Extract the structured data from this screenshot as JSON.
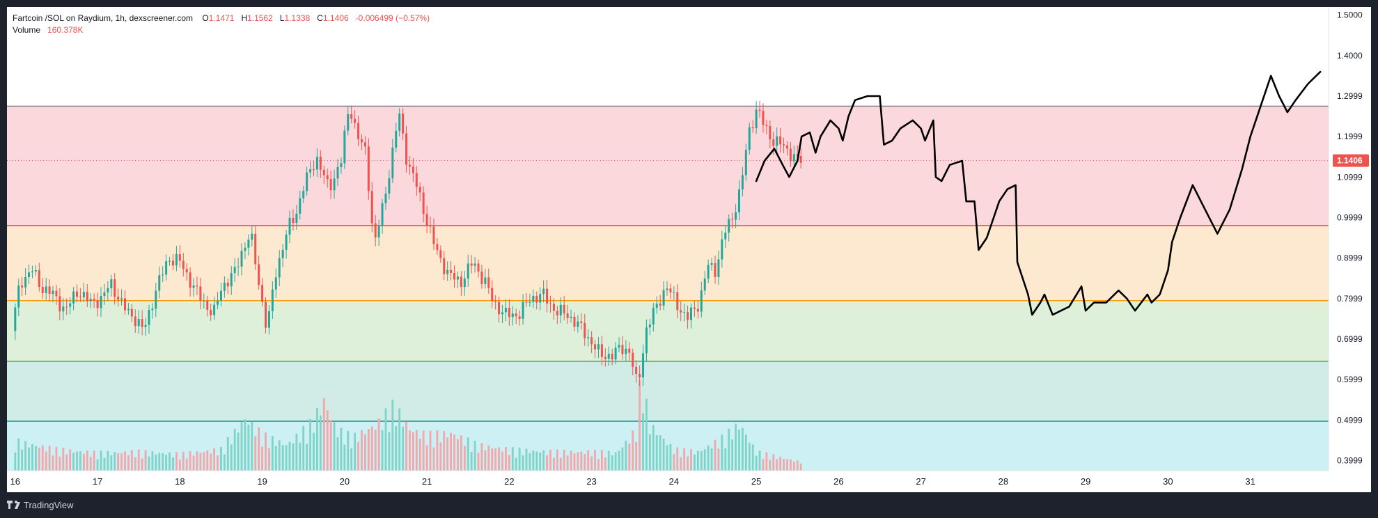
{
  "header": {
    "symbol": "Fartcoin /SOL on Raydium, 1h, dexscreener.com",
    "o_label": "O",
    "o_value": "1.1471",
    "h_label": "H",
    "h_value": "1.1562",
    "l_label": "L",
    "l_value": "1.1338",
    "c_label": "C",
    "c_value": "1.1406",
    "change": "-0.006499 (−0.57%)",
    "volume_label": "Volume",
    "volume_value": "160.378K"
  },
  "footer": {
    "brand": "TradingView"
  },
  "colors": {
    "up": "#26a69a",
    "down": "#ef5350",
    "up_volume": "#7fd3c8",
    "down_volume": "#f2a7ab",
    "zone_red": "#fad8dc",
    "zone_orange": "#fde9cf",
    "zone_green": "#def0da",
    "zone_teal": "#d1ece6",
    "zone_cyan": "#ccf0f3",
    "price_tag": "#ef5350"
  },
  "chart_data": {
    "type": "candlestick",
    "ylim": [
      0.375,
      1.52
    ],
    "y_ticks": [
      "1.5000",
      "1.4000",
      "1.2999",
      "1.1999",
      "1.0999",
      "0.9999",
      "0.8999",
      "0.7999",
      "0.6999",
      "0.5999",
      "0.4999",
      "0.3999"
    ],
    "x_ticks": [
      "16",
      "17",
      "18",
      "19",
      "20",
      "21",
      "22",
      "23",
      "24",
      "25",
      "26",
      "27",
      "28",
      "29",
      "30",
      "31"
    ],
    "last_price": "1.1406",
    "zones": [
      {
        "from": 0.98,
        "to": 1.275,
        "color": "zone_red"
      },
      {
        "from": 0.795,
        "to": 0.98,
        "color": "zone_orange"
      },
      {
        "from": 0.645,
        "to": 0.795,
        "color": "zone_green"
      },
      {
        "from": 0.497,
        "to": 0.645,
        "color": "zone_teal"
      },
      {
        "from": 0.375,
        "to": 0.497,
        "color": "zone_cyan"
      }
    ],
    "levels": [
      {
        "value": 1.275,
        "color": "#787b86"
      },
      {
        "value": 0.98,
        "color": "#f23645"
      },
      {
        "value": 0.795,
        "color": "#ff9800"
      },
      {
        "value": 0.645,
        "color": "#4caf50"
      },
      {
        "value": 0.497,
        "color": "#089981"
      }
    ],
    "price_path": [
      [
        16.0,
        0.72
      ],
      [
        16.1,
        0.84
      ],
      [
        16.25,
        0.87
      ],
      [
        16.35,
        0.83
      ],
      [
        16.5,
        0.81
      ],
      [
        16.65,
        0.77
      ],
      [
        16.8,
        0.82
      ],
      [
        16.95,
        0.79
      ],
      [
        17.1,
        0.8
      ],
      [
        17.2,
        0.84
      ],
      [
        17.35,
        0.78
      ],
      [
        17.5,
        0.75
      ],
      [
        17.6,
        0.72
      ],
      [
        17.75,
        0.82
      ],
      [
        17.9,
        0.9
      ],
      [
        18.05,
        0.89
      ],
      [
        18.2,
        0.83
      ],
      [
        18.3,
        0.8
      ],
      [
        18.45,
        0.76
      ],
      [
        18.55,
        0.83
      ],
      [
        18.7,
        0.86
      ],
      [
        18.8,
        0.92
      ],
      [
        18.9,
        0.96
      ],
      [
        19.0,
        0.84
      ],
      [
        19.1,
        0.72
      ],
      [
        19.2,
        0.86
      ],
      [
        19.35,
        0.97
      ],
      [
        19.45,
        1.01
      ],
      [
        19.55,
        1.08
      ],
      [
        19.7,
        1.15
      ],
      [
        19.85,
        1.07
      ],
      [
        20.0,
        1.14
      ],
      [
        20.1,
        1.28
      ],
      [
        20.2,
        1.2
      ],
      [
        20.3,
        1.16
      ],
      [
        20.4,
        0.93
      ],
      [
        20.5,
        1.02
      ],
      [
        20.6,
        1.13
      ],
      [
        20.7,
        1.26
      ],
      [
        20.8,
        1.14
      ],
      [
        20.9,
        1.09
      ],
      [
        21.0,
        1.02
      ],
      [
        21.15,
        0.92
      ],
      [
        21.3,
        0.86
      ],
      [
        21.45,
        0.84
      ],
      [
        21.6,
        0.89
      ],
      [
        21.75,
        0.84
      ],
      [
        21.85,
        0.79
      ],
      [
        22.0,
        0.76
      ],
      [
        22.15,
        0.76
      ],
      [
        22.3,
        0.8
      ],
      [
        22.45,
        0.81
      ],
      [
        22.6,
        0.77
      ],
      [
        22.75,
        0.76
      ],
      [
        22.9,
        0.73
      ],
      [
        23.05,
        0.69
      ],
      [
        23.15,
        0.66
      ],
      [
        23.3,
        0.66
      ],
      [
        23.4,
        0.68
      ],
      [
        23.5,
        0.67
      ],
      [
        23.6,
        0.58
      ],
      [
        23.7,
        0.72
      ],
      [
        23.85,
        0.79
      ],
      [
        23.95,
        0.83
      ],
      [
        24.1,
        0.78
      ],
      [
        24.2,
        0.75
      ],
      [
        24.35,
        0.79
      ],
      [
        24.45,
        0.88
      ],
      [
        24.55,
        0.87
      ],
      [
        24.65,
        0.96
      ],
      [
        24.75,
        1.0
      ],
      [
        24.85,
        1.07
      ],
      [
        24.95,
        1.21
      ],
      [
        25.05,
        1.27
      ],
      [
        25.15,
        1.22
      ],
      [
        25.25,
        1.19
      ],
      [
        25.35,
        1.18
      ],
      [
        25.45,
        1.16
      ],
      [
        25.55,
        1.14
      ]
    ],
    "volume_path": [
      [
        16.0,
        25
      ],
      [
        16.5,
        18
      ],
      [
        17.0,
        15
      ],
      [
        17.5,
        16
      ],
      [
        18.0,
        14
      ],
      [
        18.5,
        18
      ],
      [
        18.8,
        45
      ],
      [
        19.0,
        30
      ],
      [
        19.3,
        22
      ],
      [
        19.6,
        40
      ],
      [
        19.75,
        60
      ],
      [
        19.9,
        35
      ],
      [
        20.1,
        28
      ],
      [
        20.4,
        40
      ],
      [
        20.6,
        55
      ],
      [
        20.8,
        35
      ],
      [
        21.0,
        30
      ],
      [
        21.3,
        32
      ],
      [
        21.6,
        22
      ],
      [
        22.0,
        18
      ],
      [
        22.5,
        16
      ],
      [
        23.0,
        16
      ],
      [
        23.3,
        15
      ],
      [
        23.55,
        35
      ],
      [
        23.6,
        85
      ],
      [
        23.7,
        40
      ],
      [
        24.0,
        18
      ],
      [
        24.3,
        16
      ],
      [
        24.6,
        28
      ],
      [
        24.8,
        40
      ],
      [
        25.0,
        16
      ],
      [
        25.5,
        8
      ]
    ],
    "volume_max": 100,
    "projection_drawing": [
      [
        25.0,
        1.09
      ],
      [
        25.1,
        1.14
      ],
      [
        25.22,
        1.17
      ],
      [
        25.32,
        1.13
      ],
      [
        25.4,
        1.1
      ],
      [
        25.5,
        1.14
      ],
      [
        25.55,
        1.2
      ],
      [
        25.65,
        1.21
      ],
      [
        25.72,
        1.16
      ],
      [
        25.78,
        1.2
      ],
      [
        25.9,
        1.24
      ],
      [
        26.0,
        1.22
      ],
      [
        26.05,
        1.19
      ],
      [
        26.12,
        1.25
      ],
      [
        26.2,
        1.29
      ],
      [
        26.35,
        1.3
      ],
      [
        26.5,
        1.3
      ],
      [
        26.55,
        1.18
      ],
      [
        26.65,
        1.19
      ],
      [
        26.75,
        1.22
      ],
      [
        26.9,
        1.24
      ],
      [
        27.0,
        1.22
      ],
      [
        27.05,
        1.19
      ],
      [
        27.15,
        1.24
      ],
      [
        27.18,
        1.1
      ],
      [
        27.25,
        1.09
      ],
      [
        27.35,
        1.13
      ],
      [
        27.5,
        1.14
      ],
      [
        27.55,
        1.04
      ],
      [
        27.65,
        1.04
      ],
      [
        27.7,
        0.92
      ],
      [
        27.8,
        0.95
      ],
      [
        27.95,
        1.04
      ],
      [
        28.05,
        1.07
      ],
      [
        28.15,
        1.08
      ],
      [
        28.17,
        0.89
      ],
      [
        28.3,
        0.81
      ],
      [
        28.35,
        0.76
      ],
      [
        28.45,
        0.79
      ],
      [
        28.5,
        0.81
      ],
      [
        28.6,
        0.76
      ],
      [
        28.8,
        0.78
      ],
      [
        28.95,
        0.83
      ],
      [
        29.0,
        0.77
      ],
      [
        29.1,
        0.79
      ],
      [
        29.25,
        0.79
      ],
      [
        29.4,
        0.82
      ],
      [
        29.5,
        0.8
      ],
      [
        29.6,
        0.77
      ],
      [
        29.75,
        0.81
      ],
      [
        29.8,
        0.79
      ],
      [
        29.9,
        0.81
      ],
      [
        30.0,
        0.87
      ],
      [
        30.05,
        0.94
      ],
      [
        30.15,
        1.0
      ],
      [
        30.3,
        1.08
      ],
      [
        30.45,
        1.02
      ],
      [
        30.6,
        0.96
      ],
      [
        30.75,
        1.02
      ],
      [
        30.9,
        1.12
      ],
      [
        31.0,
        1.2
      ],
      [
        31.1,
        1.26
      ],
      [
        31.2,
        1.32
      ],
      [
        31.25,
        1.35
      ],
      [
        31.35,
        1.3
      ],
      [
        31.45,
        1.26
      ],
      [
        31.55,
        1.29
      ],
      [
        31.7,
        1.33
      ],
      [
        31.85,
        1.36
      ]
    ]
  }
}
